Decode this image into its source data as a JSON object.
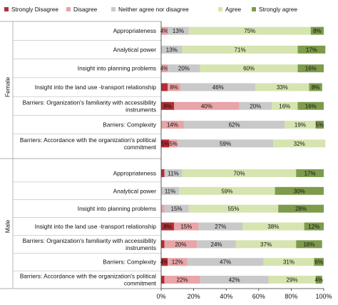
{
  "chart_data": {
    "type": "bar",
    "orientation": "horizontal",
    "stacked": true,
    "percent_stacked": true,
    "legend_position": "top",
    "grid": false,
    "xlim": [
      0,
      100
    ],
    "x_ticks": [
      "0%",
      "20%",
      "40%",
      "60%",
      "80%",
      "100%"
    ],
    "series": [
      {
        "name": "Strongly Disagree",
        "color": "#b22e36"
      },
      {
        "name": "Disagree",
        "color": "#e8a4a6"
      },
      {
        "name": "Neither agree nor disagree",
        "color": "#c9c9c9"
      },
      {
        "name": "Agree",
        "color": "#d6e4b0"
      },
      {
        "name": "Strongly agree",
        "color": "#7d9b4b"
      }
    ],
    "groups": [
      {
        "name": "Female",
        "categories": [
          {
            "label": [
              "Appropriateness"
            ],
            "values": [
              0,
              4,
              13,
              75,
              8
            ],
            "labels": [
              "",
              "4%",
              "13%",
              "75%",
              "8%"
            ]
          },
          {
            "label": [
              "Analytical power"
            ],
            "values": [
              0,
              0,
              13,
              71,
              17
            ],
            "labels": [
              "",
              "",
              "13%",
              "71%",
              "17%"
            ]
          },
          {
            "label": [
              "Insight into planning problems"
            ],
            "values": [
              0,
              4,
              20,
              60,
              16
            ],
            "labels": [
              "",
              "4%",
              "20%",
              "60%",
              "16%"
            ]
          },
          {
            "label": [
              "Insight into the land use -transport relationship"
            ],
            "values": [
              4,
              8,
              46,
              33,
              8
            ],
            "labels": [
              "",
              "8%",
              "46%",
              "33%",
              "8%"
            ]
          },
          {
            "label": [
              "Barriers: Organization's familiarity with accessibility",
              "instruments"
            ],
            "values": [
              8,
              40,
              20,
              16,
              16
            ],
            "labels": [
              "8%",
              "40%",
              "20%",
              "16%",
              "16%"
            ]
          },
          {
            "label": [
              "Barriers: Complexity"
            ],
            "values": [
              0,
              14,
              62,
              19,
              5
            ],
            "labels": [
              "",
              "14%",
              "62%",
              "19%",
              "5%"
            ]
          },
          {
            "label": [
              "Barriers: Accordance with the organization's political",
              "commitment"
            ],
            "values": [
              5,
              5,
              59,
              32,
              0
            ],
            "labels": [
              "5%",
              "5%",
              "59%",
              "32%",
              ""
            ]
          }
        ]
      },
      {
        "name": "Male",
        "categories": [
          {
            "label": [
              "Appropriateness"
            ],
            "values": [
              2,
              0,
              11,
              70,
              17
            ],
            "labels": [
              "",
              "",
              "11%",
              "70%",
              "17%"
            ]
          },
          {
            "label": [
              "Analytical power"
            ],
            "values": [
              0,
              0,
              11,
              59,
              30
            ],
            "labels": [
              "",
              "",
              "11%",
              "59%",
              "30%"
            ]
          },
          {
            "label": [
              "Insight into planning problems"
            ],
            "values": [
              0,
              2,
              15,
              55,
              28
            ],
            "labels": [
              "",
              "",
              "15%",
              "55%",
              "28%"
            ]
          },
          {
            "label": [
              "Insight into the land use -transport relationship"
            ],
            "values": [
              8,
              15,
              27,
              38,
              12
            ],
            "labels": [
              "8%",
              "15%",
              "27%",
              "38%",
              "12%"
            ]
          },
          {
            "label": [
              "Barriers: Organization's familiarity with accessibility",
              "instruments"
            ],
            "values": [
              2,
              20,
              24,
              37,
              16
            ],
            "labels": [
              "",
              "20%",
              "24%",
              "37%",
              "16%"
            ]
          },
          {
            "label": [
              "Barriers: Complexity"
            ],
            "values": [
              4,
              12,
              47,
              31,
              6
            ],
            "labels": [
              "4%",
              "12%",
              "47%",
              "31%",
              "6%"
            ]
          },
          {
            "label": [
              "Barriers: Accordance with the organization's political",
              "commitment"
            ],
            "values": [
              2,
              22,
              42,
              29,
              4
            ],
            "labels": [
              "",
              "22%",
              "42%",
              "29%",
              "4%"
            ]
          }
        ]
      }
    ]
  }
}
